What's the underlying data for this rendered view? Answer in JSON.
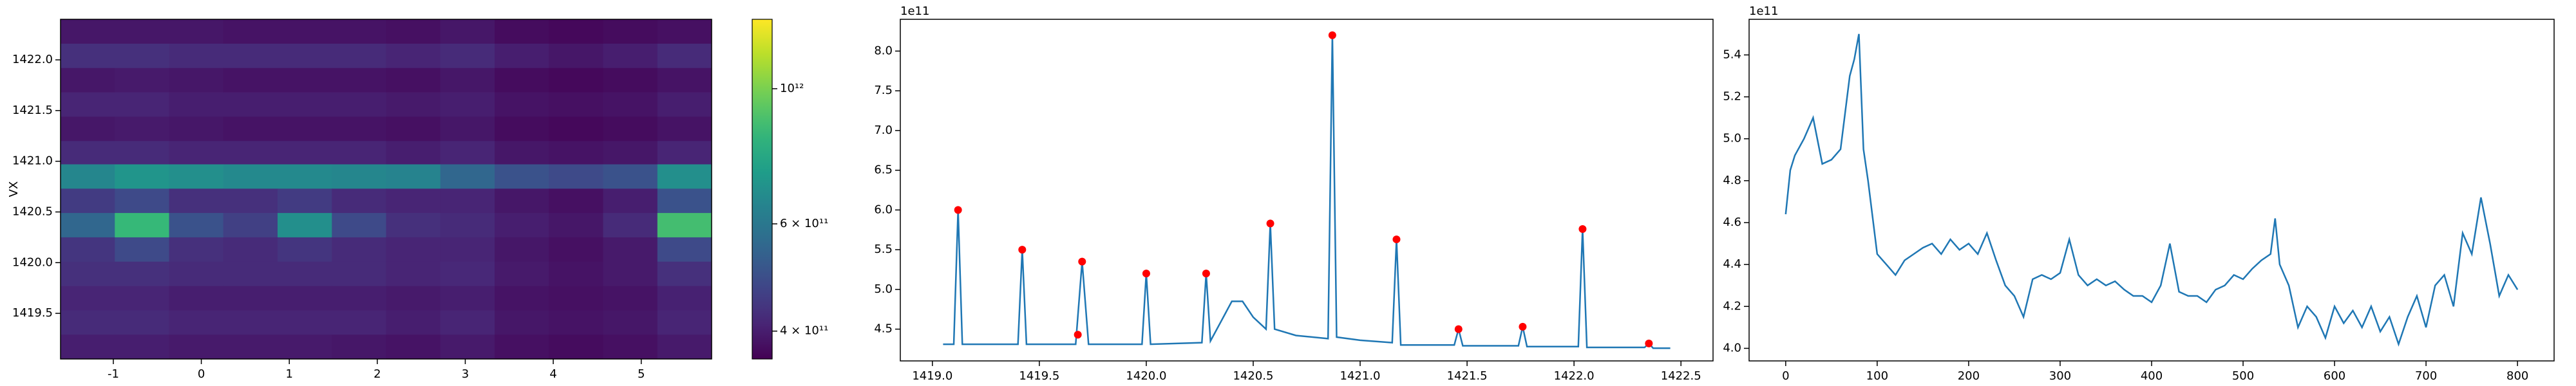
{
  "chart_data": [
    {
      "type": "heatmap",
      "ylabel": "VX",
      "x": [
        -1.292,
        -0.675,
        -0.058,
        0.558,
        1.175,
        1.792,
        2.408,
        3.025,
        3.642,
        4.258,
        4.875,
        5.492
      ],
      "y": [
        1422.28,
        1422.04,
        1421.8,
        1421.56,
        1421.32,
        1421.08,
        1420.85,
        1420.61,
        1420.37,
        1420.13,
        1419.89,
        1419.65,
        1419.41,
        1419.17
      ],
      "z": [
        [
          390000000000.0,
          390000000000.0,
          390000000000.0,
          385000000000.0,
          385000000000.0,
          385000000000.0,
          380000000000.0,
          390000000000.0,
          375000000000.0,
          370000000000.0,
          375000000000.0,
          380000000000.0
        ],
        [
          430000000000.0,
          430000000000.0,
          420000000000.0,
          420000000000.0,
          420000000000.0,
          420000000000.0,
          410000000000.0,
          420000000000.0,
          400000000000.0,
          390000000000.0,
          400000000000.0,
          420000000000.0
        ],
        [
          390000000000.0,
          395000000000.0,
          390000000000.0,
          385000000000.0,
          385000000000.0,
          385000000000.0,
          380000000000.0,
          390000000000.0,
          375000000000.0,
          370000000000.0,
          375000000000.0,
          385000000000.0
        ],
        [
          410000000000.0,
          410000000000.0,
          400000000000.0,
          400000000000.0,
          400000000000.0,
          400000000000.0,
          395000000000.0,
          400000000000.0,
          385000000000.0,
          380000000000.0,
          385000000000.0,
          400000000000.0
        ],
        [
          390000000000.0,
          395000000000.0,
          390000000000.0,
          385000000000.0,
          385000000000.0,
          385000000000.0,
          380000000000.0,
          390000000000.0,
          375000000000.0,
          370000000000.0,
          375000000000.0,
          385000000000.0
        ],
        [
          420000000000.0,
          420000000000.0,
          410000000000.0,
          410000000000.0,
          410000000000.0,
          410000000000.0,
          400000000000.0,
          410000000000.0,
          390000000000.0,
          385000000000.0,
          390000000000.0,
          410000000000.0
        ],
        [
          650000000000.0,
          700000000000.0,
          680000000000.0,
          660000000000.0,
          660000000000.0,
          650000000000.0,
          640000000000.0,
          550000000000.0,
          500000000000.0,
          480000000000.0,
          500000000000.0,
          680000000000.0
        ],
        [
          450000000000.0,
          480000000000.0,
          430000000000.0,
          430000000000.0,
          450000000000.0,
          420000000000.0,
          410000000000.0,
          410000000000.0,
          390000000000.0,
          380000000000.0,
          400000000000.0,
          500000000000.0
        ],
        [
          550000000000.0,
          850000000000.0,
          500000000000.0,
          460000000000.0,
          680000000000.0,
          480000000000.0,
          430000000000.0,
          420000000000.0,
          400000000000.0,
          390000000000.0,
          420000000000.0,
          880000000000.0
        ],
        [
          440000000000.0,
          480000000000.0,
          430000000000.0,
          420000000000.0,
          440000000000.0,
          420000000000.0,
          410000000000.0,
          410000000000.0,
          390000000000.0,
          380000000000.0,
          395000000000.0,
          480000000000.0
        ],
        [
          430000000000.0,
          430000000000.0,
          420000000000.0,
          420000000000.0,
          420000000000.0,
          420000000000.0,
          410000000000.0,
          415000000000.0,
          395000000000.0,
          385000000000.0,
          395000000000.0,
          430000000000.0
        ],
        [
          410000000000.0,
          410000000000.0,
          400000000000.0,
          400000000000.0,
          400000000000.0,
          400000000000.0,
          395000000000.0,
          400000000000.0,
          385000000000.0,
          380000000000.0,
          385000000000.0,
          405000000000.0
        ],
        [
          420000000000.0,
          420000000000.0,
          410000000000.0,
          410000000000.0,
          410000000000.0,
          410000000000.0,
          400000000000.0,
          410000000000.0,
          390000000000.0,
          385000000000.0,
          390000000000.0,
          410000000000.0
        ],
        [
          400000000000.0,
          400000000000.0,
          395000000000.0,
          395000000000.0,
          395000000000.0,
          390000000000.0,
          385000000000.0,
          395000000000.0,
          380000000000.0,
          375000000000.0,
          380000000000.0,
          395000000000.0
        ]
      ],
      "xlim": [
        -1.6,
        5.8
      ],
      "ylim": [
        1419.05,
        1422.4
      ],
      "xticks": [
        -1,
        0,
        1,
        2,
        3,
        4,
        5
      ],
      "yticks": [
        1419.5,
        {
          "value": 1420,
          "label": "1420.0"
        },
        1420.5,
        {
          "value": 1421,
          "label": "1421.0"
        },
        1421.5,
        {
          "value": 1422,
          "label": "1422.0"
        }
      ],
      "colormap": "viridis",
      "colorbar": {
        "scale": "log",
        "lim": [
          360000000000.0,
          1300000000000.0
        ],
        "ticks": [
          {
            "value": 400000000000.0,
            "label": "4 × 10¹¹"
          },
          {
            "value": 600000000000.0,
            "label": "6 × 10¹¹"
          },
          {
            "value": 1000000000000.0,
            "label": "10¹²"
          }
        ]
      }
    },
    {
      "type": "line",
      "offset_label": "1e11",
      "color": "#1f77b4",
      "x": [
        1419.05,
        1419.1,
        1419.12,
        1419.14,
        1419.4,
        1419.42,
        1419.44,
        1419.67,
        1419.7,
        1419.73,
        1419.98,
        1420.0,
        1420.02,
        1420.26,
        1420.28,
        1420.3,
        1420.35,
        1420.4,
        1420.45,
        1420.5,
        1420.56,
        1420.58,
        1420.6,
        1420.7,
        1420.85,
        1420.87,
        1420.89,
        1421.0,
        1421.15,
        1421.17,
        1421.19,
        1421.44,
        1421.46,
        1421.48,
        1421.74,
        1421.76,
        1421.78,
        1422.02,
        1422.04,
        1422.06,
        1422.33,
        1422.35,
        1422.37,
        1422.45
      ],
      "values": [
        4.31,
        4.31,
        6.0,
        4.31,
        4.31,
        5.5,
        4.31,
        4.31,
        5.35,
        4.31,
        4.31,
        5.2,
        4.31,
        4.33,
        5.2,
        4.35,
        4.6,
        4.85,
        4.85,
        4.65,
        4.5,
        5.83,
        4.5,
        4.42,
        4.38,
        8.2,
        4.4,
        4.36,
        4.33,
        5.63,
        4.3,
        4.3,
        4.5,
        4.29,
        4.29,
        4.53,
        4.28,
        4.28,
        5.76,
        4.27,
        4.27,
        4.32,
        4.26,
        4.26
      ],
      "markers": {
        "color": "#ff0000",
        "x": [
          1419.12,
          1419.42,
          1419.68,
          1419.7,
          1420.0,
          1420.28,
          1420.58,
          1420.87,
          1421.17,
          1421.46,
          1421.76,
          1422.04,
          1422.35
        ],
        "values": [
          6.0,
          5.5,
          4.43,
          5.35,
          5.2,
          5.2,
          5.83,
          8.2,
          5.63,
          4.5,
          4.53,
          5.76,
          4.32
        ]
      },
      "xlim": [
        1418.85,
        1422.65
      ],
      "ylim": [
        4.1,
        8.4
      ],
      "xticks": [
        {
          "value": 1419,
          "label": "1419.0"
        },
        1419.5,
        {
          "value": 1420,
          "label": "1420.0"
        },
        1420.5,
        {
          "value": 1421,
          "label": "1421.0"
        },
        1421.5,
        {
          "value": 1422,
          "label": "1422.0"
        },
        1422.5
      ],
      "yticks": [
        4.5,
        {
          "value": 5,
          "label": "5.0"
        },
        5.5,
        {
          "value": 6,
          "label": "6.0"
        },
        6.5,
        {
          "value": 7,
          "label": "7.0"
        },
        7.5,
        {
          "value": 8,
          "label": "8.0"
        }
      ]
    },
    {
      "type": "line",
      "offset_label": "1e11",
      "color": "#1f77b4",
      "x": [
        0,
        5,
        10,
        20,
        30,
        40,
        50,
        60,
        70,
        75,
        80,
        85,
        90,
        100,
        110,
        120,
        130,
        140,
        150,
        160,
        170,
        180,
        190,
        200,
        210,
        220,
        230,
        240,
        250,
        260,
        270,
        280,
        290,
        300,
        310,
        320,
        330,
        340,
        350,
        360,
        370,
        380,
        390,
        400,
        410,
        420,
        430,
        440,
        450,
        460,
        470,
        480,
        490,
        500,
        510,
        520,
        530,
        535,
        540,
        550,
        560,
        570,
        580,
        590,
        600,
        610,
        620,
        630,
        640,
        650,
        660,
        670,
        680,
        690,
        700,
        710,
        720,
        730,
        740,
        750,
        760,
        770,
        780,
        790,
        800
      ],
      "values": [
        4.64,
        4.85,
        4.92,
        5.0,
        5.1,
        4.88,
        4.9,
        4.95,
        5.3,
        5.38,
        5.5,
        4.95,
        4.8,
        4.45,
        4.4,
        4.35,
        4.42,
        4.45,
        4.48,
        4.5,
        4.45,
        4.52,
        4.47,
        4.5,
        4.45,
        4.55,
        4.42,
        4.3,
        4.25,
        4.15,
        4.33,
        4.35,
        4.33,
        4.36,
        4.52,
        4.35,
        4.3,
        4.33,
        4.3,
        4.32,
        4.28,
        4.25,
        4.25,
        4.22,
        4.3,
        4.5,
        4.27,
        4.25,
        4.25,
        4.22,
        4.28,
        4.3,
        4.35,
        4.33,
        4.38,
        4.42,
        4.45,
        4.62,
        4.4,
        4.3,
        4.1,
        4.2,
        4.15,
        4.05,
        4.2,
        4.12,
        4.18,
        4.1,
        4.2,
        4.08,
        4.15,
        4.02,
        4.15,
        4.25,
        4.1,
        4.3,
        4.35,
        4.2,
        4.55,
        4.45,
        4.72,
        4.5,
        4.25,
        4.35,
        4.28
      ],
      "xlim": [
        -40,
        840
      ],
      "ylim": [
        3.94,
        5.57
      ],
      "xticks": [
        0,
        100,
        200,
        300,
        400,
        500,
        600,
        700,
        800
      ],
      "yticks": [
        {
          "value": 4,
          "label": "4.0"
        },
        4.2,
        4.4,
        4.6,
        4.8,
        {
          "value": 5,
          "label": "5.0"
        },
        5.2,
        5.4
      ]
    }
  ]
}
